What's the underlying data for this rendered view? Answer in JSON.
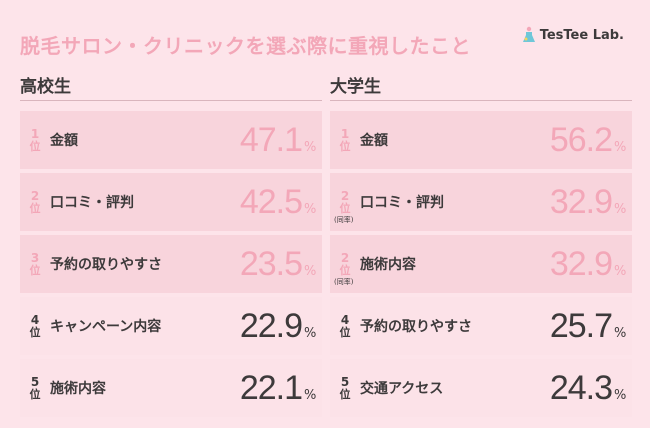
{
  "title": "脱毛サロン・クリニックを選ぶ際に重視したこと",
  "brand": "TesTee Lab.",
  "rank_suffix": "位",
  "unit": "%",
  "tie_note": "(同率)",
  "colors": {
    "accent": "#f3a7b8",
    "bg": "#fde4ea",
    "text": "#3d3a3b"
  },
  "left": {
    "header": "高校生",
    "rows": [
      {
        "rank": "1",
        "label": "金額",
        "value": "47.1",
        "highlight": true
      },
      {
        "rank": "2",
        "label": "口コミ・評判",
        "value": "42.5",
        "highlight": true
      },
      {
        "rank": "3",
        "label": "予約の取りやすさ",
        "value": "23.5",
        "highlight": true
      },
      {
        "rank": "4",
        "label": "キャンペーン内容",
        "value": "22.9",
        "highlight": false
      },
      {
        "rank": "5",
        "label": "施術内容",
        "value": "22.1",
        "highlight": false
      }
    ]
  },
  "right": {
    "header": "大学生",
    "rows": [
      {
        "rank": "1",
        "label": "金額",
        "value": "56.2",
        "highlight": true,
        "tie": false
      },
      {
        "rank": "2",
        "label": "口コミ・評判",
        "value": "32.9",
        "highlight": true,
        "tie": true
      },
      {
        "rank": "2",
        "label": "施術内容",
        "value": "32.9",
        "highlight": true,
        "tie": true
      },
      {
        "rank": "4",
        "label": "予約の取りやすさ",
        "value": "25.7",
        "highlight": false,
        "tie": false
      },
      {
        "rank": "5",
        "label": "交通アクセス",
        "value": "24.3",
        "highlight": false,
        "tie": false
      }
    ]
  }
}
